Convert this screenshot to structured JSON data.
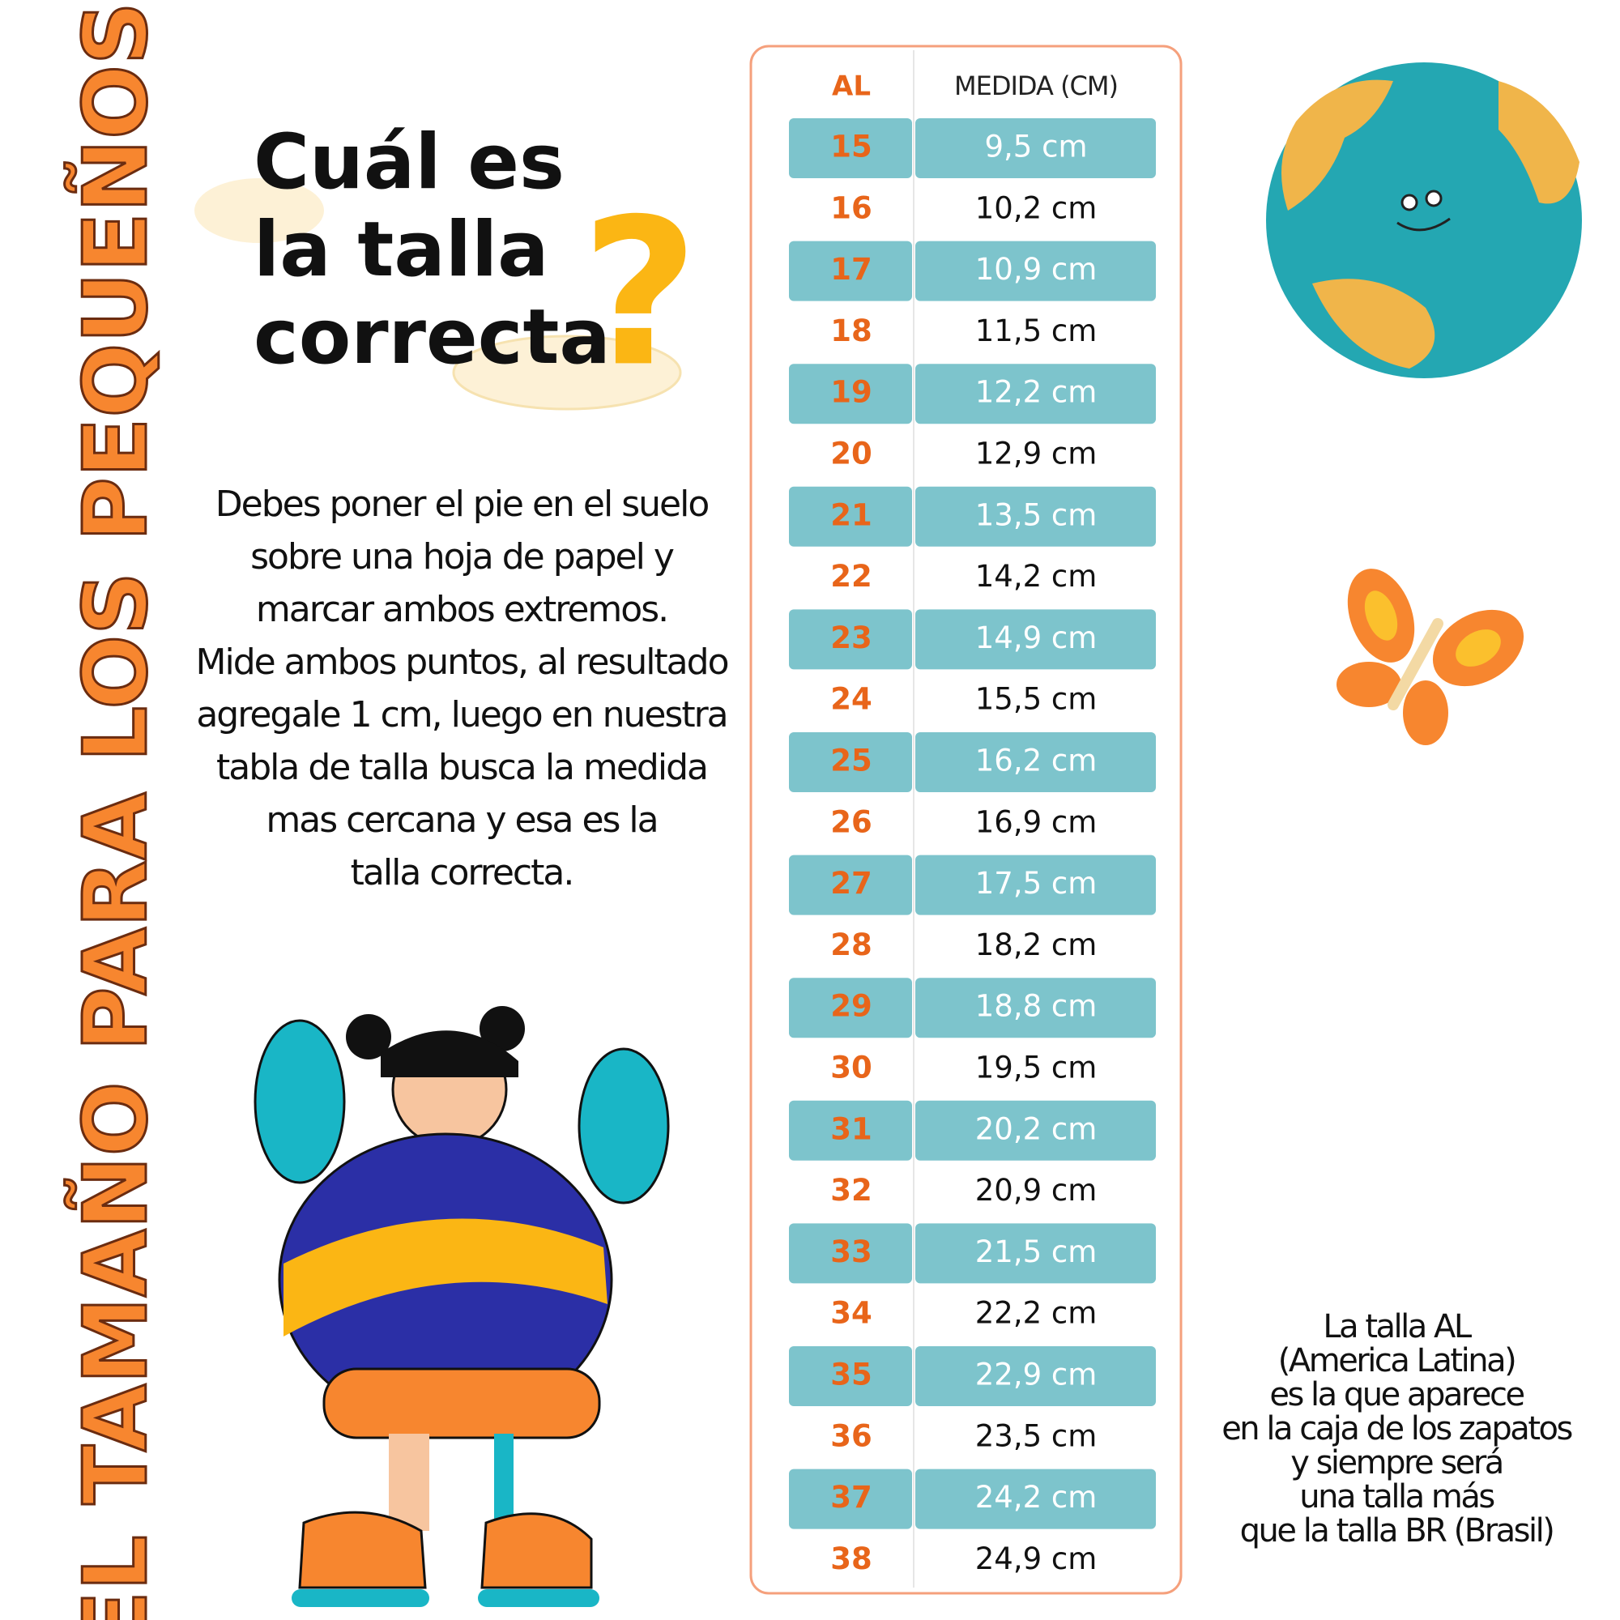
{
  "side_title": "EL TAMAÑO PARA LOS PEQUEÑOS",
  "heading": [
    "Cuál es",
    "la talla",
    "correcta"
  ],
  "instructions": [
    "Debes poner el pie en el suelo",
    "sobre una hoja de papel y",
    "marcar ambos extremos.",
    "Mide ambos puntos, al resultado",
    "agregale 1 cm, luego en nuestra",
    "tabla de talla busca la medida",
    "mas cercana y esa es la",
    "talla correcta."
  ],
  "table": {
    "header": [
      "AL",
      "MEDIDA (CM)"
    ],
    "rows": [
      [
        "15",
        "9,5 cm"
      ],
      [
        "16",
        "10,2 cm"
      ],
      [
        "17",
        "10,9 cm"
      ],
      [
        "18",
        "11,5 cm"
      ],
      [
        "19",
        "12,2 cm"
      ],
      [
        "20",
        "12,9 cm"
      ],
      [
        "21",
        "13,5 cm"
      ],
      [
        "22",
        "14,2 cm"
      ],
      [
        "23",
        "14,9 cm"
      ],
      [
        "24",
        "15,5 cm"
      ],
      [
        "25",
        "16,2 cm"
      ],
      [
        "26",
        "16,9 cm"
      ],
      [
        "27",
        "17,5 cm"
      ],
      [
        "28",
        "18,2 cm"
      ],
      [
        "29",
        "18,8 cm"
      ],
      [
        "30",
        "19,5 cm"
      ],
      [
        "31",
        "20,2 cm"
      ],
      [
        "32",
        "20,9 cm"
      ],
      [
        "33",
        "21,5 cm"
      ],
      [
        "34",
        "22,2 cm"
      ],
      [
        "35",
        "22,9 cm"
      ],
      [
        "36",
        "23,5 cm"
      ],
      [
        "37",
        "24,2 cm"
      ],
      [
        "38",
        "24,9 cm"
      ]
    ]
  },
  "note": [
    "La talla AL",
    "(America Latina)",
    "es la que aparece",
    "en la caja de los zapatos",
    "y siempre será",
    "una talla más",
    "que la talla BR (Brasil)"
  ]
}
